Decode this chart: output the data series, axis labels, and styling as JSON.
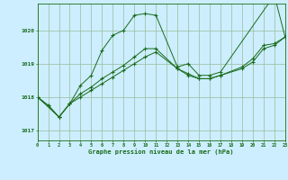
{
  "title": "Graphe pression niveau de la mer (hPa)",
  "bg_color": "#cceeff",
  "line_color": "#1a6b1a",
  "grid_color": "#99bb99",
  "xlim": [
    0,
    23
  ],
  "ylim": [
    1016.7,
    1020.8
  ],
  "xticks": [
    0,
    1,
    2,
    3,
    4,
    5,
    6,
    7,
    8,
    9,
    10,
    11,
    12,
    13,
    14,
    15,
    16,
    17,
    18,
    19,
    20,
    21,
    22,
    23
  ],
  "yticks": [
    1017,
    1018,
    1019,
    1020
  ],
  "series1_x": [
    0,
    1,
    2,
    3,
    4,
    5,
    6,
    7,
    8,
    9,
    10,
    11,
    13,
    14,
    15,
    16,
    17,
    22,
    23
  ],
  "series1_y": [
    1018.0,
    1017.75,
    1017.4,
    1017.8,
    1018.35,
    1018.65,
    1019.4,
    1019.85,
    1020.0,
    1020.45,
    1020.5,
    1020.45,
    1018.9,
    1019.0,
    1018.65,
    1018.65,
    1018.75,
    1021.05,
    1019.8
  ],
  "series2_x": [
    0,
    2,
    3,
    4,
    5,
    6,
    7,
    8,
    9,
    10,
    11,
    13,
    14,
    15,
    16,
    17,
    19,
    20,
    21,
    22,
    23
  ],
  "series2_y": [
    1018.0,
    1017.4,
    1017.8,
    1018.0,
    1018.2,
    1018.4,
    1018.6,
    1018.8,
    1019.0,
    1019.2,
    1019.35,
    1018.85,
    1018.65,
    1018.55,
    1018.55,
    1018.65,
    1018.85,
    1019.05,
    1019.45,
    1019.55,
    1019.8
  ],
  "series3_x": [
    0,
    1,
    2,
    3,
    4,
    5,
    6,
    7,
    8,
    9,
    10,
    11,
    13,
    14,
    15,
    16,
    17,
    19,
    20,
    21,
    22,
    23
  ],
  "series3_y": [
    1018.0,
    1017.75,
    1017.4,
    1017.8,
    1018.1,
    1018.3,
    1018.55,
    1018.75,
    1018.95,
    1019.2,
    1019.45,
    1019.45,
    1018.85,
    1018.7,
    1018.55,
    1018.55,
    1018.65,
    1018.9,
    1019.15,
    1019.55,
    1019.6,
    1019.8
  ]
}
